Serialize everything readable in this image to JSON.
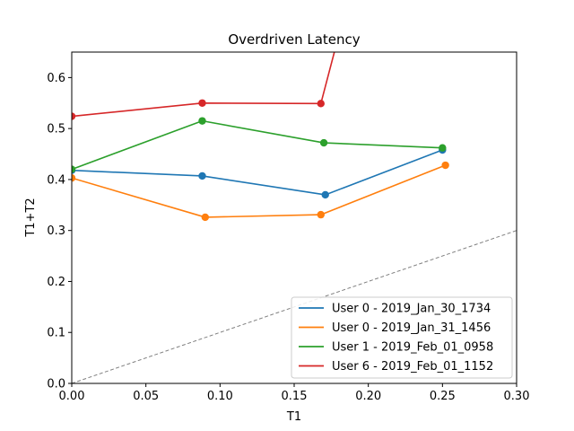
{
  "chart_data": {
    "type": "line",
    "title": "Overdriven Latency",
    "xlabel": "T1",
    "ylabel": "T1+T2",
    "xlim": [
      0,
      0.3
    ],
    "ylim": [
      0,
      0.65
    ],
    "xticks": [
      "0.00",
      "0.05",
      "0.10",
      "0.15",
      "0.20",
      "0.25",
      "0.30"
    ],
    "yticks": [
      "0.0",
      "0.1",
      "0.2",
      "0.3",
      "0.4",
      "0.5",
      "0.6"
    ],
    "grid": false,
    "legend_position": "lower-right",
    "reference_line": {
      "x": [
        0,
        0.3
      ],
      "y": [
        0,
        0.3
      ],
      "style": "dashed",
      "color": "#808080"
    },
    "series": [
      {
        "name": "User 0 - 2019_Jan_30_1734",
        "color": "#1f77b4",
        "x": [
          0.0,
          0.088,
          0.171,
          0.25
        ],
        "y": [
          0.418,
          0.407,
          0.37,
          0.458
        ]
      },
      {
        "name": "User 0 - 2019_Jan_31_1456",
        "color": "#ff7f0e",
        "x": [
          0.0,
          0.09,
          0.168,
          0.252
        ],
        "y": [
          0.403,
          0.326,
          0.331,
          0.428
        ]
      },
      {
        "name": "User 1 - 2019_Feb_01_0958",
        "color": "#2ca02c",
        "x": [
          0.0,
          0.088,
          0.17,
          0.25
        ],
        "y": [
          0.42,
          0.515,
          0.472,
          0.462
        ]
      },
      {
        "name": "User 6 - 2019_Feb_01_1152",
        "color": "#d62728",
        "x": [
          0.0,
          0.088,
          0.168,
          0.178
        ],
        "y": [
          0.524,
          0.55,
          0.549,
          0.66
        ]
      }
    ]
  }
}
